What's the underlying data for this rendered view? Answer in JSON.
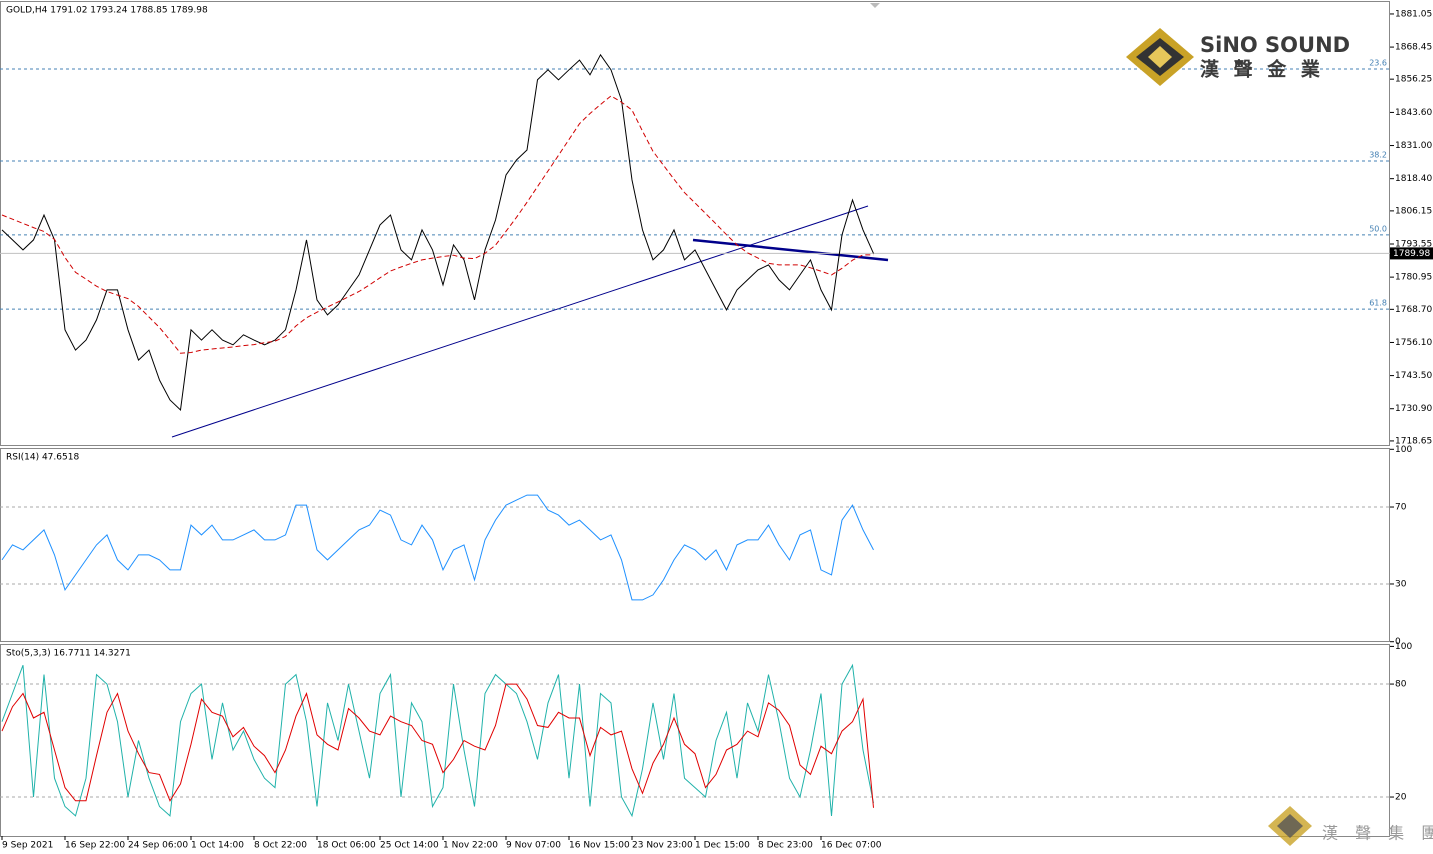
{
  "chart_data": [
    {
      "type": "line",
      "title": "GOLD,H4  1791.02 1793.24 1788.85 1789.98",
      "categories": [
        "9 Sep 2021",
        null,
        null,
        null,
        null,
        null,
        "16 Sep 22:00",
        null,
        null,
        null,
        null,
        null,
        "24 Sep 06:00",
        null,
        null,
        null,
        null,
        null,
        "1 Oct 14:00",
        null,
        null,
        null,
        null,
        null,
        "8 Oct 22:00",
        null,
        null,
        null,
        null,
        null,
        "18 Oct 06:00",
        null,
        null,
        null,
        null,
        null,
        "25 Oct 14:00",
        null,
        null,
        null,
        null,
        null,
        "1 Nov 22:00",
        null,
        null,
        null,
        null,
        null,
        "9 Nov 07:00",
        null,
        null,
        null,
        null,
        null,
        "16 Nov 15:00",
        null,
        null,
        null,
        null,
        null,
        "23 Nov 23:00",
        null,
        null,
        null,
        null,
        null,
        "1 Dec 15:00",
        null,
        null,
        null,
        null,
        null,
        "8 Dec 23:00",
        null,
        null,
        null,
        null,
        null,
        "16 Dec 07:00",
        null,
        null,
        null,
        null,
        null
      ],
      "series": [
        {
          "color": "#000000",
          "values": [
            1798.9,
            1795.1,
            1791.3,
            1795.1,
            1804.6,
            1795.1,
            1760.9,
            1753.2,
            1757.0,
            1764.7,
            1776.1,
            1776.1,
            1760.9,
            1749.4,
            1753.2,
            1741.8,
            1734.2,
            1730.4,
            1760.9,
            1757.0,
            1760.9,
            1757.0,
            1755.2,
            1759.0,
            1757.0,
            1755.2,
            1757.0,
            1760.9,
            1776.1,
            1795.1,
            1772.3,
            1766.6,
            1770.4,
            1776.1,
            1781.8,
            1791.3,
            1800.8,
            1804.6,
            1791.3,
            1787.5,
            1798.9,
            1791.3,
            1778.0,
            1793.2,
            1787.5,
            1772.3,
            1791.3,
            1802.7,
            1819.8,
            1825.5,
            1829.3,
            1856.0,
            1859.8,
            1856.0,
            1859.8,
            1863.5,
            1857.9,
            1865.5,
            1859.8,
            1848.3,
            1817.9,
            1798.9,
            1787.5,
            1791.3,
            1798.9,
            1787.5,
            1791.3,
            1783.7,
            1776.1,
            1768.5,
            1776.1,
            1779.9,
            1783.7,
            1785.6,
            1779.9,
            1776.1,
            1781.8,
            1787.5,
            1776.1,
            1768.5,
            1797.0,
            1810.3,
            1798.9,
            1789.98
          ]
        },
        {
          "color": "#d00000",
          "dashed": true,
          "values": [
            1804.6,
            1803.0,
            1801.4,
            1799.8,
            1798.3,
            1795.3,
            1788.4,
            1782.8,
            1780.2,
            1777.5,
            1775.5,
            1774.1,
            1772.8,
            1769.8,
            1765.8,
            1761.8,
            1757.0,
            1752.0,
            1752.3,
            1753.2,
            1753.6,
            1754.0,
            1754.4,
            1754.9,
            1755.3,
            1756.0,
            1756.6,
            1758.4,
            1762.4,
            1765.5,
            1767.6,
            1769.6,
            1771.5,
            1773.5,
            1775.5,
            1778.0,
            1780.7,
            1783.3,
            1784.8,
            1786.2,
            1787.5,
            1788.2,
            1788.8,
            1789.3,
            1788.2,
            1788.0,
            1790.0,
            1793.1,
            1798.4,
            1803.7,
            1809.4,
            1815.4,
            1821.3,
            1827.3,
            1833.3,
            1839.3,
            1843.2,
            1846.6,
            1849.9,
            1847.5,
            1844.5,
            1836.5,
            1828.8,
            1823.5,
            1818.2,
            1813.1,
            1809.2,
            1805.2,
            1801.2,
            1797.1,
            1793.2,
            1790.2,
            1788.2,
            1786.2,
            1785.6,
            1785.6,
            1785.6,
            1784.5,
            1783.2,
            1781.8,
            1784.3,
            1787.4,
            1789.4,
            1789.4
          ]
        }
      ],
      "ylim": [
        1717.1,
        1885.6
      ],
      "yticks": [
        1881.05,
        1868.45,
        1856.25,
        {
          "value": 1843.6,
          "label": "1843.60"
        },
        {
          "value": 1831.0,
          "label": "1831.00"
        },
        {
          "value": 1818.4,
          "label": "1818.40"
        },
        1806.15,
        1793.55,
        1780.95,
        {
          "value": 1768.7,
          "label": "1768.70"
        },
        {
          "value": 1756.1,
          "label": "1756.10"
        },
        {
          "value": 1743.5,
          "label": "1743.50"
        },
        {
          "value": 1730.9,
          "label": "1730.90"
        },
        1718.65
      ],
      "current_price": 1789.98,
      "fib_levels": [
        {
          "label": "23.6",
          "value": 1860.1
        },
        {
          "label": "38.2",
          "value": 1825.1
        },
        {
          "label": "50.0",
          "value": 1797.0
        },
        {
          "label": "61.8",
          "value": 1768.8
        }
      ]
    },
    {
      "type": "line",
      "title": "RSI(14) 47.6518",
      "series": [
        {
          "color": "#1e90ff",
          "values": [
            42.5,
            50.3,
            47.7,
            52.9,
            58.1,
            45.1,
            26.9,
            34.7,
            42.5,
            50.3,
            55.5,
            42.5,
            37.3,
            45.1,
            45.1,
            42.5,
            37.3,
            37.3,
            60.6,
            55.5,
            60.6,
            52.9,
            52.9,
            55.5,
            58.1,
            52.9,
            52.9,
            55.5,
            71.0,
            71.0,
            47.7,
            42.5,
            47.7,
            52.9,
            58.1,
            60.6,
            68.4,
            65.8,
            52.9,
            50.3,
            60.6,
            52.9,
            37.3,
            47.7,
            50.3,
            32.1,
            52.9,
            63.2,
            71.0,
            73.6,
            76.2,
            76.2,
            68.4,
            65.8,
            60.6,
            63.2,
            58.1,
            52.9,
            55.5,
            42.5,
            21.7,
            21.7,
            24.3,
            32.1,
            42.5,
            50.3,
            47.7,
            42.5,
            47.7,
            37.3,
            50.3,
            52.9,
            52.9,
            60.6,
            50.3,
            42.5,
            55.5,
            58.1,
            37.3,
            34.7,
            63.2,
            71.0,
            58.1,
            47.7
          ]
        }
      ],
      "ylim": [
        0,
        100
      ],
      "yticks": [
        0,
        30,
        70,
        100
      ]
    },
    {
      "type": "line",
      "title": "Sto(5,3,3) 16.7711 14.3271",
      "series": [
        {
          "color": "#20b2aa",
          "values": [
            60,
            75,
            90,
            20,
            85,
            30,
            15,
            10,
            30,
            85,
            80,
            60,
            20,
            50,
            30,
            15,
            10,
            60,
            75,
            80,
            40,
            70,
            45,
            55,
            40,
            30,
            25,
            80,
            85,
            60,
            15,
            70,
            50,
            80,
            55,
            30,
            75,
            85,
            20,
            70,
            60,
            15,
            25,
            80,
            45,
            15,
            75,
            85,
            80,
            75,
            60,
            40,
            70,
            85,
            30,
            80,
            15,
            75,
            70,
            20,
            10,
            35,
            70,
            40,
            75,
            30,
            25,
            20,
            50,
            65,
            30,
            70,
            55,
            85,
            60,
            30,
            20,
            45,
            75,
            10,
            80,
            90,
            45,
            16.8
          ]
        },
        {
          "color": "#e00000",
          "values": [
            55,
            68,
            75,
            62,
            65,
            45,
            25,
            18,
            18,
            42,
            65,
            75,
            55,
            43,
            33,
            32,
            18,
            27,
            48,
            72,
            65,
            63,
            52,
            57,
            47,
            42,
            33,
            45,
            63,
            75,
            53,
            48,
            45,
            67,
            62,
            55,
            53,
            63,
            60,
            58,
            50,
            48,
            33,
            40,
            50,
            47,
            45,
            58,
            80,
            80,
            72,
            58,
            57,
            65,
            62,
            62,
            42,
            57,
            53,
            55,
            35,
            22,
            38,
            48,
            62,
            48,
            43,
            25,
            32,
            45,
            48,
            55,
            52,
            70,
            66,
            58,
            37,
            32,
            47,
            43,
            55,
            60,
            72,
            14.3
          ]
        }
      ],
      "ylim": [
        0,
        100
      ],
      "yticks": [
        20,
        80,
        100
      ]
    }
  ],
  "logo": {
    "brand": "SiNO SOUND",
    "chinese": "漢 聲 金 業"
  },
  "watermark": "漢 聲 集 團"
}
